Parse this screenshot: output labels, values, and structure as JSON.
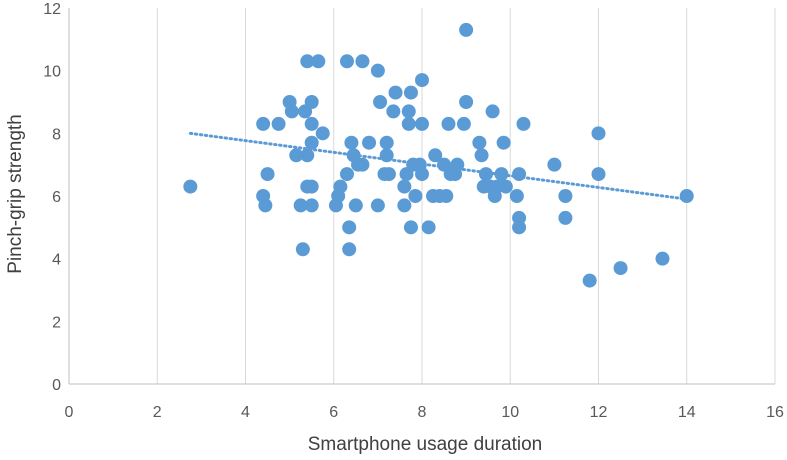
{
  "chart_data": {
    "type": "scatter",
    "xlabel": "Smartphone usage duration",
    "ylabel": "Pinch-grip strength",
    "xlim": [
      0,
      16
    ],
    "ylim": [
      0,
      12
    ],
    "xticks": [
      0,
      2,
      4,
      6,
      8,
      10,
      12,
      14,
      16
    ],
    "yticks": [
      0,
      2,
      4,
      6,
      8,
      10,
      12
    ],
    "grid": "vertical",
    "point_color": "#5B9BD5",
    "trendline": {
      "type": "linear",
      "style": "dotted",
      "x": [
        2.75,
        14.0
      ],
      "y": [
        8.0,
        5.9
      ],
      "color": "#5B9BD5"
    },
    "points": [
      [
        2.75,
        6.3
      ],
      [
        4.4,
        8.3
      ],
      [
        4.4,
        6.0
      ],
      [
        4.45,
        5.7
      ],
      [
        4.5,
        6.7
      ],
      [
        4.75,
        8.3
      ],
      [
        5.0,
        9.0
      ],
      [
        5.05,
        8.7
      ],
      [
        5.15,
        7.3
      ],
      [
        5.25,
        5.7
      ],
      [
        5.3,
        4.3
      ],
      [
        5.35,
        8.7
      ],
      [
        5.4,
        10.3
      ],
      [
        5.4,
        6.3
      ],
      [
        5.4,
        7.3
      ],
      [
        5.5,
        9.0
      ],
      [
        5.5,
        8.3
      ],
      [
        5.5,
        7.7
      ],
      [
        5.5,
        6.3
      ],
      [
        5.5,
        5.7
      ],
      [
        5.65,
        10.3
      ],
      [
        5.75,
        8.0
      ],
      [
        6.05,
        5.7
      ],
      [
        6.1,
        6.0
      ],
      [
        6.15,
        6.3
      ],
      [
        6.3,
        10.3
      ],
      [
        6.3,
        6.7
      ],
      [
        6.35,
        5.0
      ],
      [
        6.35,
        4.3
      ],
      [
        6.4,
        7.7
      ],
      [
        6.45,
        7.3
      ],
      [
        6.5,
        5.7
      ],
      [
        6.55,
        7.0
      ],
      [
        6.65,
        7.0
      ],
      [
        6.65,
        10.3
      ],
      [
        6.8,
        7.7
      ],
      [
        7.0,
        10.0
      ],
      [
        7.0,
        5.7
      ],
      [
        7.05,
        9.0
      ],
      [
        7.15,
        6.7
      ],
      [
        7.2,
        7.7
      ],
      [
        7.2,
        7.3
      ],
      [
        7.25,
        6.7
      ],
      [
        7.35,
        8.7
      ],
      [
        7.4,
        9.3
      ],
      [
        7.6,
        6.3
      ],
      [
        7.6,
        5.7
      ],
      [
        7.65,
        6.7
      ],
      [
        7.7,
        8.7
      ],
      [
        7.7,
        8.3
      ],
      [
        7.75,
        9.3
      ],
      [
        7.75,
        5.0
      ],
      [
        7.8,
        7.0
      ],
      [
        7.85,
        6.0
      ],
      [
        7.95,
        7.0
      ],
      [
        8.0,
        9.7
      ],
      [
        8.0,
        8.3
      ],
      [
        8.0,
        6.7
      ],
      [
        8.15,
        5.0
      ],
      [
        8.25,
        6.0
      ],
      [
        8.3,
        7.3
      ],
      [
        8.4,
        6.0
      ],
      [
        8.5,
        7.0
      ],
      [
        8.55,
        6.0
      ],
      [
        8.6,
        8.3
      ],
      [
        8.65,
        6.7
      ],
      [
        8.75,
        6.7
      ],
      [
        8.8,
        7.0
      ],
      [
        8.95,
        8.3
      ],
      [
        9.0,
        11.3
      ],
      [
        9.0,
        9.0
      ],
      [
        9.3,
        7.7
      ],
      [
        9.35,
        7.3
      ],
      [
        9.4,
        6.3
      ],
      [
        9.45,
        6.7
      ],
      [
        9.55,
        6.3
      ],
      [
        9.6,
        8.7
      ],
      [
        9.65,
        6.0
      ],
      [
        9.7,
        6.3
      ],
      [
        9.8,
        6.7
      ],
      [
        9.85,
        7.7
      ],
      [
        9.9,
        6.3
      ],
      [
        10.15,
        6.0
      ],
      [
        10.2,
        6.7
      ],
      [
        10.2,
        5.3
      ],
      [
        10.2,
        5.0
      ],
      [
        10.3,
        8.3
      ],
      [
        11.0,
        7.0
      ],
      [
        11.25,
        6.0
      ],
      [
        11.25,
        5.3
      ],
      [
        11.8,
        3.3
      ],
      [
        12.0,
        8.0
      ],
      [
        12.0,
        6.7
      ],
      [
        12.5,
        3.7
      ],
      [
        13.45,
        4.0
      ],
      [
        14.0,
        6.0
      ]
    ]
  }
}
